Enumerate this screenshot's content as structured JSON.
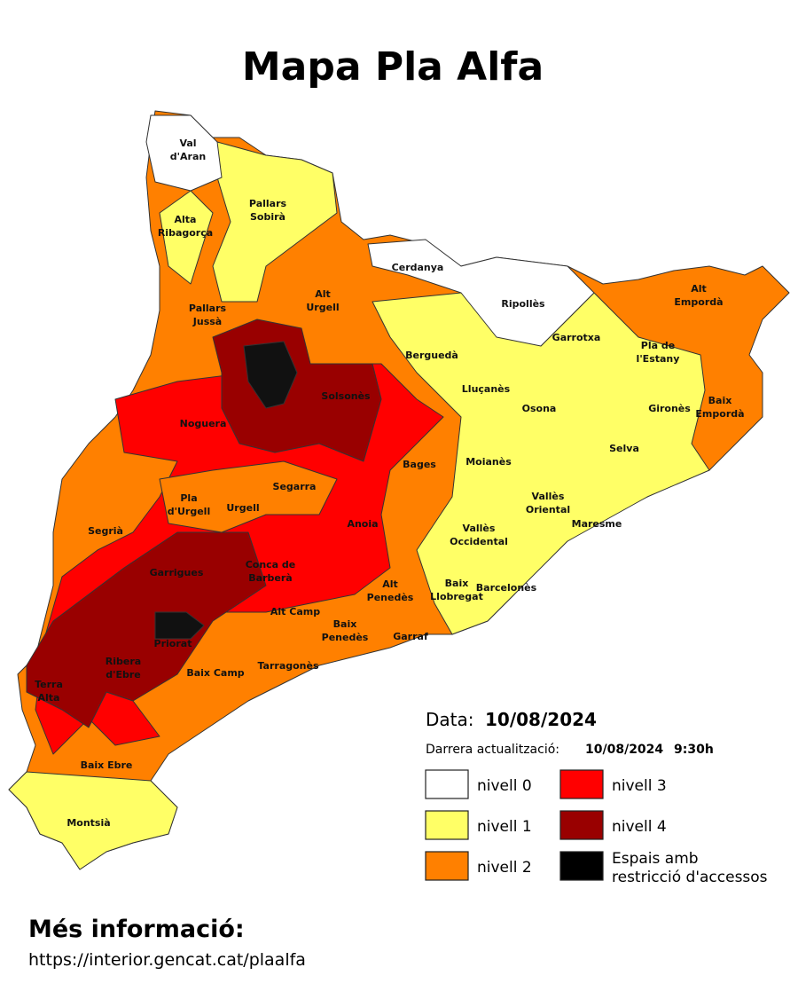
{
  "title": "Mapa Pla Alfa",
  "regions": [
    [
      "Val",
      "d'Aran"
    ],
    [
      "Pallars",
      "Sobirà"
    ],
    [
      "Alta",
      "Ribagorça"
    ],
    [
      "Cerdanya"
    ],
    [
      "Alt",
      "Urgell"
    ],
    [
      "Pallars",
      "Jussà"
    ],
    [
      "Ripollès"
    ],
    [
      "Alt",
      "Empordà"
    ],
    [
      "Garrotxa"
    ],
    [
      "Pla de",
      "l'Estany"
    ],
    [
      "Berguedà"
    ],
    [
      "Solsonès"
    ],
    [
      "Lluçanès"
    ],
    [
      "Osona"
    ],
    [
      "Gironès"
    ],
    [
      "Baix",
      "Empordà"
    ],
    [
      "Noguera"
    ],
    [
      "Selva"
    ],
    [
      "Bages"
    ],
    [
      "Moianès"
    ],
    [
      "Segarra"
    ],
    [
      "Pla",
      "d'Urgell"
    ],
    [
      "Urgell"
    ],
    [
      "Vallès",
      "Oriental"
    ],
    [
      "Segrià"
    ],
    [
      "Anoia"
    ],
    [
      "Maresme"
    ],
    [
      "Vallès",
      "Occidental"
    ],
    [
      "Garrigues"
    ],
    [
      "Conca de",
      "Barberà"
    ],
    [
      "Alt",
      "Penedès"
    ],
    [
      "Baix",
      "Llobregat"
    ],
    [
      "Barcelonès"
    ],
    [
      "Alt Camp"
    ],
    [
      "Baix",
      "Penedès"
    ],
    [
      "Garraf"
    ],
    [
      "Priorat"
    ],
    [
      "Ribera",
      "d'Ebre"
    ],
    [
      "Baix Camp"
    ],
    [
      "Tarragonès"
    ],
    [
      "Terra",
      "Alta"
    ],
    [
      "Baix Ebre"
    ],
    [
      "Montsià"
    ]
  ],
  "date_label": "Data:",
  "date": "10/08/2024",
  "update_label": "Darrera actualització:",
  "update_date": "10/08/2024",
  "update_time": "9:30h",
  "legend": [
    {
      "label": [
        "nivell 0"
      ],
      "color": "#ffffff"
    },
    {
      "label": [
        "nivell 1"
      ],
      "color": "#ffff66"
    },
    {
      "label": [
        "nivell 2"
      ],
      "color": "#ff8000"
    },
    {
      "label": [
        "nivell 3"
      ],
      "color": "#ff0000"
    },
    {
      "label": [
        "nivell 4"
      ],
      "color": "#990000"
    },
    {
      "label": [
        "Espais amb",
        "restricció d'accessos"
      ],
      "color": "#000000"
    }
  ],
  "more_info": {
    "title": "Més informació:",
    "url": "https://interior.gencat.cat/plaalfa"
  }
}
